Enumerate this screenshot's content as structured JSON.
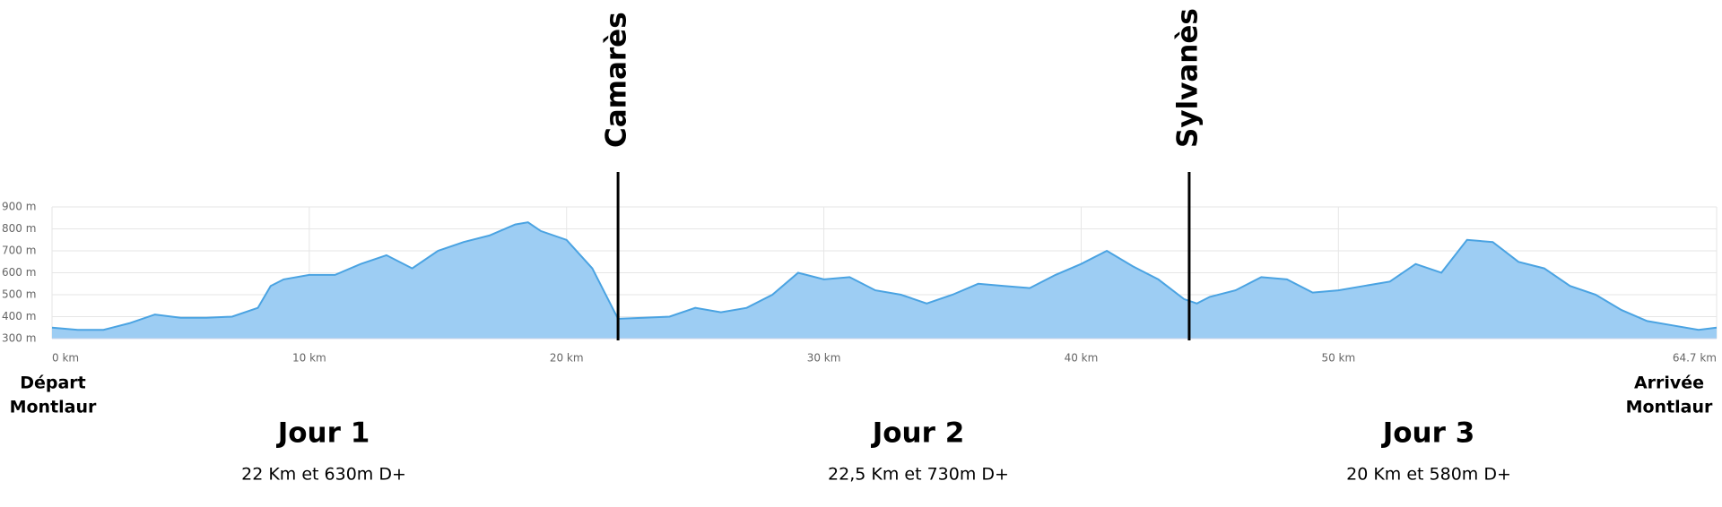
{
  "chart_data": {
    "type": "area",
    "x": [
      0,
      1,
      2,
      3,
      4,
      5,
      6,
      7,
      8,
      8.5,
      9,
      10,
      11,
      12,
      13,
      14,
      15,
      16,
      17,
      18,
      18.5,
      19,
      20,
      21,
      22,
      23,
      24,
      25,
      26,
      27,
      28,
      29,
      30,
      31,
      32,
      33,
      34,
      35,
      36,
      37,
      38,
      39,
      40,
      41,
      42,
      43,
      44,
      44.5,
      45,
      46,
      47,
      48,
      49,
      50,
      51,
      52,
      53,
      54,
      55,
      56,
      57,
      58,
      59,
      60,
      61,
      62,
      63,
      64,
      64.7
    ],
    "values": [
      350,
      340,
      340,
      370,
      410,
      395,
      395,
      400,
      440,
      540,
      570,
      590,
      590,
      640,
      680,
      620,
      700,
      740,
      770,
      820,
      830,
      790,
      750,
      620,
      390,
      395,
      400,
      440,
      420,
      440,
      500,
      600,
      570,
      580,
      520,
      500,
      460,
      500,
      550,
      540,
      530,
      590,
      640,
      700,
      630,
      570,
      480,
      460,
      490,
      520,
      580,
      570,
      510,
      520,
      540,
      560,
      640,
      600,
      750,
      740,
      650,
      620,
      540,
      500,
      430,
      380,
      360,
      340,
      350
    ],
    "color": "#9dcdf3",
    "line_color": "#4aa3e2",
    "grid": true,
    "xlim": [
      0,
      64.7
    ],
    "ylim": [
      300,
      900
    ],
    "xticks": [
      {
        "value": 0,
        "label": "0 km"
      },
      {
        "value": 10,
        "label": "10 km"
      },
      {
        "value": 20,
        "label": "20 km"
      },
      {
        "value": 30,
        "label": "30 km"
      },
      {
        "value": 40,
        "label": "40 km"
      },
      {
        "value": 50,
        "label": "50 km"
      },
      {
        "value": 64.7,
        "label": "64.7 km"
      }
    ],
    "yticks": [
      {
        "value": 300,
        "label": "300 m"
      },
      {
        "value": 400,
        "label": "400 m"
      },
      {
        "value": 500,
        "label": "500 m"
      },
      {
        "value": 600,
        "label": "600 m"
      },
      {
        "value": 700,
        "label": "700 m"
      },
      {
        "value": 800,
        "label": "800 m"
      },
      {
        "value": 900,
        "label": "900 m"
      }
    ],
    "markers": [
      {
        "x": 22,
        "label": "Camarès"
      },
      {
        "x": 44.2,
        "label": "Sylvanès"
      }
    ],
    "start_label": [
      "Départ",
      "Montlaur"
    ],
    "end_label": [
      "Arrivée",
      "Montlaur"
    ],
    "days": [
      {
        "title": "Jour 1",
        "subtitle": "22 Km et 630m D+"
      },
      {
        "title": "Jour 2",
        "subtitle": "22,5 Km et 730m D+"
      },
      {
        "title": "Jour 3",
        "subtitle": "20 Km et 580m D+"
      }
    ]
  }
}
